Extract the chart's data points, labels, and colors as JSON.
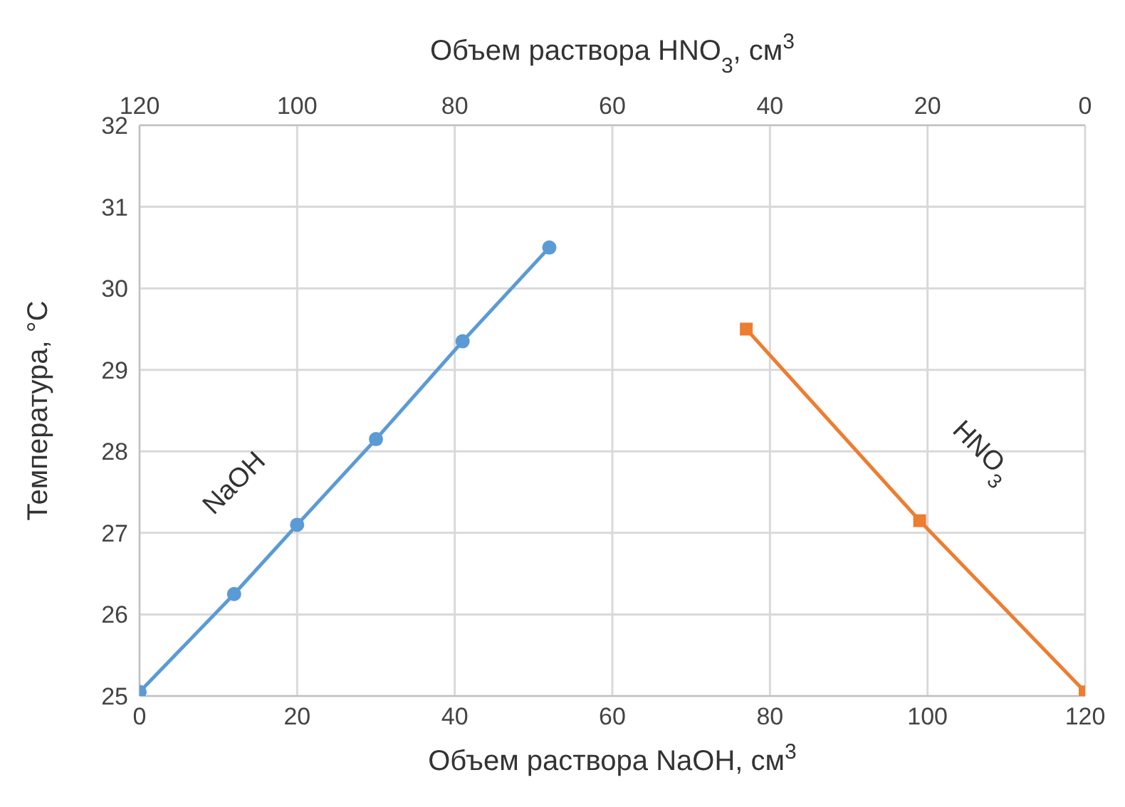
{
  "chart_data": {
    "type": "line",
    "xlabel": "Объем раствора NaOH, см$^{3}$",
    "x2label": "Объем раствора HNO$_{3}$, см$^{3}$",
    "ylabel": "Температура, °C",
    "xlim": [
      0,
      120
    ],
    "xticks": [
      0,
      20,
      40,
      60,
      80,
      100,
      120
    ],
    "x2lim": [
      120,
      0
    ],
    "x2ticks": [
      120,
      100,
      80,
      60,
      40,
      20,
      0
    ],
    "ylim": [
      25,
      32
    ],
    "yticks": [
      25,
      26,
      27,
      28,
      29,
      30,
      31,
      32
    ],
    "grid": true,
    "legend": false,
    "series": [
      {
        "name": "NaOH",
        "color": "#5b9bd5",
        "marker": "circle",
        "x": [
          0,
          12,
          20,
          30,
          41,
          52
        ],
        "values": [
          25.05,
          26.25,
          27.1,
          28.15,
          29.35,
          30.5
        ]
      },
      {
        "name": "HNO$_{3}$",
        "color": "#ed7d31",
        "marker": "square",
        "axis": "x2",
        "x": [
          43,
          21,
          0
        ],
        "values": [
          29.5,
          27.15,
          25.05
        ]
      }
    ]
  }
}
